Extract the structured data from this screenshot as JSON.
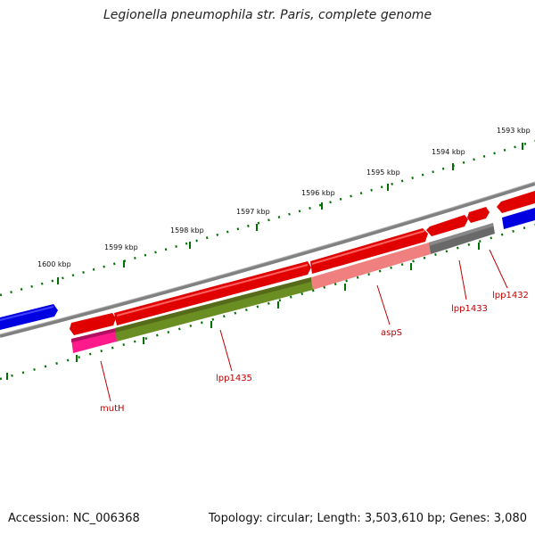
{
  "title": "Legionella pneumophila str. Paris, complete genome",
  "footer": {
    "accession": "Accession: NC_006368",
    "summary": "Topology: circular; Length: 3,503,610 bp; Genes: 3,080"
  },
  "scale_labels": [
    "1593 kbp",
    "1594 kbp",
    "1595 kbp",
    "1596 kbp",
    "1597 kbp",
    "1598 kbp",
    "1599 kbp",
    "1600 kbp"
  ],
  "gene_labels": {
    "mutH": "mutH",
    "lpp1435": "lpp1435",
    "aspS": "aspS",
    "lpp1433": "lpp1433",
    "lpp1432": "lpp1432"
  },
  "colors": {
    "forward_gene": "#e00000",
    "reverse_gene": "#0000e0",
    "backbone": "#808080",
    "ticks": "#007000",
    "cog_pink": "#ff1a8c",
    "cog_olive": "#6b8e23",
    "cog_salmon": "#f08080",
    "cog_gray": "#696969",
    "label": "#c00000"
  }
}
